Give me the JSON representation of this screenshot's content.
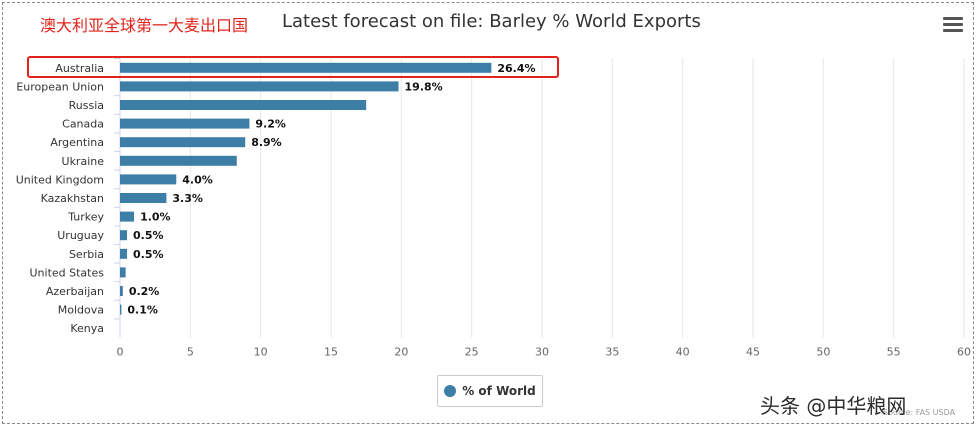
{
  "annotation_title": "澳大利亚全球第一大麦出口国",
  "watermark": "头条 @中华粮网",
  "source": "Source: FAS USDA",
  "colors": {
    "bar": "#3d7ea6",
    "annotation": "#e0241b"
  },
  "menu_icon": "hamburger-menu-icon",
  "legend_icon": "circle-marker",
  "chart_data": {
    "type": "bar",
    "orientation": "horizontal",
    "title": "Latest forecast on file: Barley % World Exports",
    "categories": [
      "Australia",
      "European Union",
      "Russia",
      "Canada",
      "Argentina",
      "Ukraine",
      "United Kingdom",
      "Kazakhstan",
      "Turkey",
      "Uruguay",
      "Serbia",
      "United States",
      "Azerbaijan",
      "Moldova",
      "Kenya"
    ],
    "series": [
      {
        "name": "% of World",
        "values": [
          26.4,
          19.8,
          17.5,
          9.2,
          8.9,
          8.3,
          4.0,
          3.3,
          1.0,
          0.5,
          0.5,
          0.4,
          0.2,
          0.1,
          0.0
        ],
        "data_labels": [
          "26.4%",
          "19.8%",
          "",
          "9.2%",
          "8.9%",
          "",
          "4.0%",
          "3.3%",
          "1.0%",
          "0.5%",
          "0.5%",
          "",
          "0.2%",
          "0.1%",
          ""
        ]
      }
    ],
    "xlim": [
      0,
      60
    ],
    "xticks": [
      0,
      5,
      10,
      15,
      20,
      25,
      30,
      35,
      40,
      45,
      50,
      55,
      60
    ],
    "grid": "vertical",
    "legend_position": "bottom-center",
    "highlighted_category": "Australia"
  }
}
